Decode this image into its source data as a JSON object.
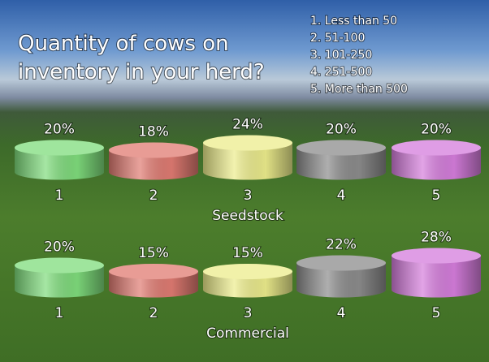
{
  "title": "Quantity of cows on inventory in your herd?",
  "options": [
    "1. Less than 50",
    "2. 51-100",
    "3. 101-250",
    "4. 251-500",
    "5. More than 500"
  ],
  "chart_data": [
    {
      "type": "cylinder",
      "x_label": "Seedstock",
      "categories": [
        "1",
        "2",
        "3",
        "4",
        "5"
      ],
      "values": [
        20,
        18,
        24,
        20,
        20
      ],
      "value_labels": [
        "20%",
        "18%",
        "24%",
        "20%",
        "20%"
      ],
      "colors": [
        "#7fdc7c",
        "#e07b72",
        "#ecec8c",
        "#8c8c8c",
        "#d57ddc"
      ],
      "ylim": [
        0,
        30
      ]
    },
    {
      "type": "cylinder",
      "x_label": "Commercial",
      "categories": [
        "1",
        "2",
        "3",
        "4",
        "5"
      ],
      "values": [
        20,
        15,
        15,
        22,
        28
      ],
      "value_labels": [
        "20%",
        "15%",
        "15%",
        "22%",
        "28%"
      ],
      "colors": [
        "#7fdc7c",
        "#e07b72",
        "#ecec8c",
        "#8c8c8c",
        "#d57ddc"
      ],
      "ylim": [
        0,
        30
      ]
    }
  ]
}
